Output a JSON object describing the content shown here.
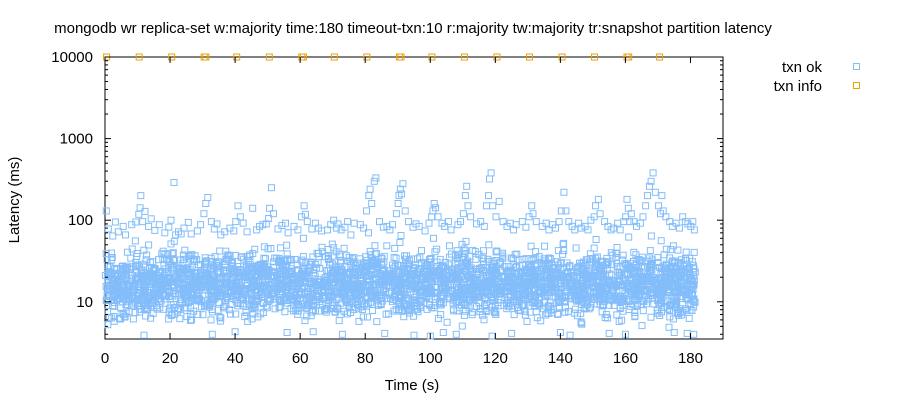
{
  "chart_data": {
    "type": "scatter",
    "title": "mongodb wr replica-set w:majority time:180 timeout-txn:10 r:majority tw:majority tr:snapshot partition latency",
    "xlabel": "Time (s)",
    "ylabel": "Latency (ms)",
    "xlim": [
      0,
      190
    ],
    "ylim": [
      3.5,
      10000
    ],
    "yscale": "log",
    "grid": false,
    "legend_position": "top-right-outside",
    "x_ticks": [
      0,
      20,
      40,
      60,
      80,
      100,
      120,
      140,
      160,
      180
    ],
    "x_tick_labels": [
      "0",
      "20",
      "40",
      "60",
      "80",
      "100",
      "120",
      "140",
      "160",
      "180"
    ],
    "y_ticks": [
      10,
      100,
      1000,
      10000
    ],
    "y_tick_labels": [
      "10",
      "100",
      "1000",
      "10000"
    ],
    "series": [
      {
        "name": "txn ok",
        "color": "#83bdfb",
        "marker": "open-square",
        "points": [
          [
            0.4,
            130
          ],
          [
            1.0,
            78
          ],
          [
            2.4,
            64
          ],
          [
            3.2,
            95
          ],
          [
            4.1,
            72
          ],
          [
            5.6,
            84
          ],
          [
            6.3,
            66
          ],
          [
            8.2,
            88
          ],
          [
            9.5,
            95
          ],
          [
            10.4,
            118
          ],
          [
            10.8,
            142
          ],
          [
            11.0,
            200
          ],
          [
            11.6,
            96
          ],
          [
            12.3,
            128
          ],
          [
            13.4,
            84
          ],
          [
            14.2,
            104
          ],
          [
            15.3,
            75
          ],
          [
            16.7,
            88
          ],
          [
            18.4,
            70
          ],
          [
            19.6,
            82
          ],
          [
            20.3,
            100
          ],
          [
            21.2,
            290
          ],
          [
            21.7,
            66
          ],
          [
            22.6,
            72
          ],
          [
            23.4,
            68
          ],
          [
            24.3,
            80
          ],
          [
            25.6,
            94
          ],
          [
            26.5,
            68
          ],
          [
            28.4,
            74
          ],
          [
            29.4,
            88
          ],
          [
            30.4,
            120
          ],
          [
            31.0,
            160
          ],
          [
            31.6,
            190
          ],
          [
            32.7,
            96
          ],
          [
            33.6,
            78
          ],
          [
            34.4,
            90
          ],
          [
            35.6,
            66
          ],
          [
            36.8,
            72
          ],
          [
            38.4,
            80
          ],
          [
            39.6,
            74
          ],
          [
            40.2,
            96
          ],
          [
            40.9,
            150
          ],
          [
            41.6,
            110
          ],
          [
            42.5,
            92
          ],
          [
            43.7,
            72
          ],
          [
            45.4,
            140
          ],
          [
            46.6,
            76
          ],
          [
            47.5,
            84
          ],
          [
            48.5,
            88
          ],
          [
            49.6,
            90
          ],
          [
            50.3,
            105
          ],
          [
            50.6,
            140
          ],
          [
            51.2,
            250
          ],
          [
            51.8,
            120
          ],
          [
            53.2,
            78
          ],
          [
            54.4,
            86
          ],
          [
            55.5,
            92
          ],
          [
            56.3,
            70
          ],
          [
            58.1,
            84
          ],
          [
            59.3,
            76
          ],
          [
            60.4,
            110
          ],
          [
            61.2,
            150
          ],
          [
            61.6,
            118
          ],
          [
            62.2,
            96
          ],
          [
            63.6,
            78
          ],
          [
            64.7,
            92
          ],
          [
            65.6,
            80
          ],
          [
            66.6,
            74
          ],
          [
            68.4,
            76
          ],
          [
            69.4,
            88
          ],
          [
            70.3,
            100
          ],
          [
            71.2,
            80
          ],
          [
            71.6,
            90
          ],
          [
            72.6,
            76
          ],
          [
            73.8,
            82
          ],
          [
            74.6,
            96
          ],
          [
            75.6,
            66
          ],
          [
            76.6,
            92
          ],
          [
            78.5,
            88
          ],
          [
            79.5,
            80
          ],
          [
            80.4,
            130
          ],
          [
            81.1,
            200
          ],
          [
            81.5,
            240
          ],
          [
            82.0,
            160
          ],
          [
            82.8,
            300
          ],
          [
            83.3,
            330
          ],
          [
            84.4,
            96
          ],
          [
            85.6,
            82
          ],
          [
            86.7,
            84
          ],
          [
            87.6,
            76
          ],
          [
            88.4,
            88
          ],
          [
            89.6,
            120
          ],
          [
            90.1,
            160
          ],
          [
            90.4,
            200
          ],
          [
            90.8,
            240
          ],
          [
            91.2,
            210
          ],
          [
            91.6,
            280
          ],
          [
            92.3,
            130
          ],
          [
            93.3,
            96
          ],
          [
            94.7,
            82
          ],
          [
            95.6,
            90
          ],
          [
            96.6,
            84
          ],
          [
            98.4,
            74
          ],
          [
            99.6,
            92
          ],
          [
            100.4,
            110
          ],
          [
            100.8,
            130
          ],
          [
            101.2,
            160
          ],
          [
            101.6,
            142
          ],
          [
            102.4,
            110
          ],
          [
            103.6,
            92
          ],
          [
            104.4,
            84
          ],
          [
            105.6,
            96
          ],
          [
            106.4,
            76
          ],
          [
            108.5,
            88
          ],
          [
            109.3,
            96
          ],
          [
            110.2,
            120
          ],
          [
            110.8,
            200
          ],
          [
            111.2,
            260
          ],
          [
            111.6,
            150
          ],
          [
            112.4,
            110
          ],
          [
            114.2,
            90
          ],
          [
            115.5,
            96
          ],
          [
            116.6,
            84
          ],
          [
            117.3,
            150
          ],
          [
            117.9,
            200
          ],
          [
            118.2,
            320
          ],
          [
            118.7,
            380
          ],
          [
            119.2,
            150
          ],
          [
            120.2,
            110
          ],
          [
            121.2,
            170
          ],
          [
            122.4,
            96
          ],
          [
            123.6,
            84
          ],
          [
            124.6,
            92
          ],
          [
            125.6,
            76
          ],
          [
            126.4,
            88
          ],
          [
            128.3,
            96
          ],
          [
            129.4,
            82
          ],
          [
            130.4,
            110
          ],
          [
            131.2,
            150
          ],
          [
            131.6,
            120
          ],
          [
            132.6,
            96
          ],
          [
            134.4,
            84
          ],
          [
            135.6,
            92
          ],
          [
            136.5,
            76
          ],
          [
            137.6,
            88
          ],
          [
            138.5,
            80
          ],
          [
            139.6,
            96
          ],
          [
            140.3,
            130
          ],
          [
            141.1,
            220
          ],
          [
            141.7,
            130
          ],
          [
            142.6,
            96
          ],
          [
            143.6,
            84
          ],
          [
            144.4,
            76
          ],
          [
            145.6,
            92
          ],
          [
            146.4,
            80
          ],
          [
            147.6,
            84
          ],
          [
            148.5,
            76
          ],
          [
            149.4,
            100
          ],
          [
            150.4,
            110
          ],
          [
            150.8,
            150
          ],
          [
            151.7,
            180
          ],
          [
            152.2,
            120
          ],
          [
            153.6,
            96
          ],
          [
            154.6,
            84
          ],
          [
            155.6,
            76
          ],
          [
            156.3,
            80
          ],
          [
            157.6,
            92
          ],
          [
            158.4,
            76
          ],
          [
            159.5,
            96
          ],
          [
            160.1,
            110
          ],
          [
            160.5,
            180
          ],
          [
            160.9,
            140
          ],
          [
            161.3,
            96
          ],
          [
            161.8,
            120
          ],
          [
            162.6,
            96
          ],
          [
            163.4,
            84
          ],
          [
            164.6,
            92
          ],
          [
            165.4,
            110
          ],
          [
            166.2,
            150
          ],
          [
            166.8,
            200
          ],
          [
            167.4,
            260
          ],
          [
            167.9,
            300
          ],
          [
            168.5,
            380
          ],
          [
            169.2,
            220
          ],
          [
            170.2,
            150
          ],
          [
            170.8,
            120
          ],
          [
            171.2,
            200
          ],
          [
            171.6,
            130
          ],
          [
            172.4,
            110
          ],
          [
            173.6,
            96
          ],
          [
            174.4,
            84
          ],
          [
            175.6,
            92
          ],
          [
            176.6,
            80
          ],
          [
            177.6,
            110
          ],
          [
            178.4,
            96
          ],
          [
            179.2,
            90
          ],
          [
            180.1,
            84
          ],
          [
            180.7,
            96
          ],
          [
            181.2,
            76
          ],
          [
            12.0,
            3.9
          ],
          [
            33.0,
            4.0
          ],
          [
            56.0,
            4.2
          ],
          [
            73.0,
            4.0
          ],
          [
            86.0,
            4.1
          ],
          [
            95.0,
            3.9
          ],
          [
            104.0,
            4.2
          ],
          [
            108.0,
            4.0
          ],
          [
            125.0,
            4.1
          ],
          [
            140.0,
            4.2
          ],
          [
            143.0,
            3.9
          ],
          [
            155.0,
            4.1
          ],
          [
            160.0,
            4.0
          ],
          [
            175.0,
            4.2
          ],
          [
            179.0,
            4.1
          ],
          [
            181.0,
            4.0
          ],
          [
            40.0,
            4.3
          ],
          [
            64.0,
            4.3
          ],
          [
            119.0,
            3.8
          ],
          [
            100.0,
            3.8
          ],
          [
            21.0,
            40
          ],
          [
            21.3,
            55
          ],
          [
            51.0,
            45
          ],
          [
            61.0,
            60
          ],
          [
            81.0,
            70
          ],
          [
            91.0,
            65
          ],
          [
            101.0,
            60
          ],
          [
            111.0,
            55
          ],
          [
            118.0,
            50
          ],
          [
            131.0,
            48
          ],
          [
            141.0,
            52
          ],
          [
            151.0,
            58
          ],
          [
            161.0,
            62
          ],
          [
            168.0,
            64
          ],
          [
            171.0,
            56
          ]
        ],
        "dense_band": {
          "x_range": [
            0,
            181.5
          ],
          "y_range": [
            4.5,
            60
          ],
          "description": "thousands of overlapping txn ok points forming a solid band"
        }
      },
      {
        "name": "txn info",
        "color": "#f0a000",
        "marker": "open-square",
        "points": [
          [
            0.5,
            10000
          ],
          [
            10.5,
            10000
          ],
          [
            20.5,
            10000
          ],
          [
            30.5,
            10000
          ],
          [
            31.0,
            10000
          ],
          [
            40.5,
            10000
          ],
          [
            50.5,
            10000
          ],
          [
            60.5,
            10000
          ],
          [
            61.0,
            10000
          ],
          [
            70.5,
            10000
          ],
          [
            80.5,
            10000
          ],
          [
            90.5,
            10000
          ],
          [
            91.0,
            10000
          ],
          [
            100.5,
            10000
          ],
          [
            110.5,
            10000
          ],
          [
            120.5,
            10000
          ],
          [
            130.5,
            10000
          ],
          [
            140.5,
            10000
          ],
          [
            150.5,
            10000
          ],
          [
            160.5,
            10000
          ],
          [
            161.0,
            10000
          ],
          [
            170.5,
            10000
          ]
        ]
      }
    ]
  }
}
